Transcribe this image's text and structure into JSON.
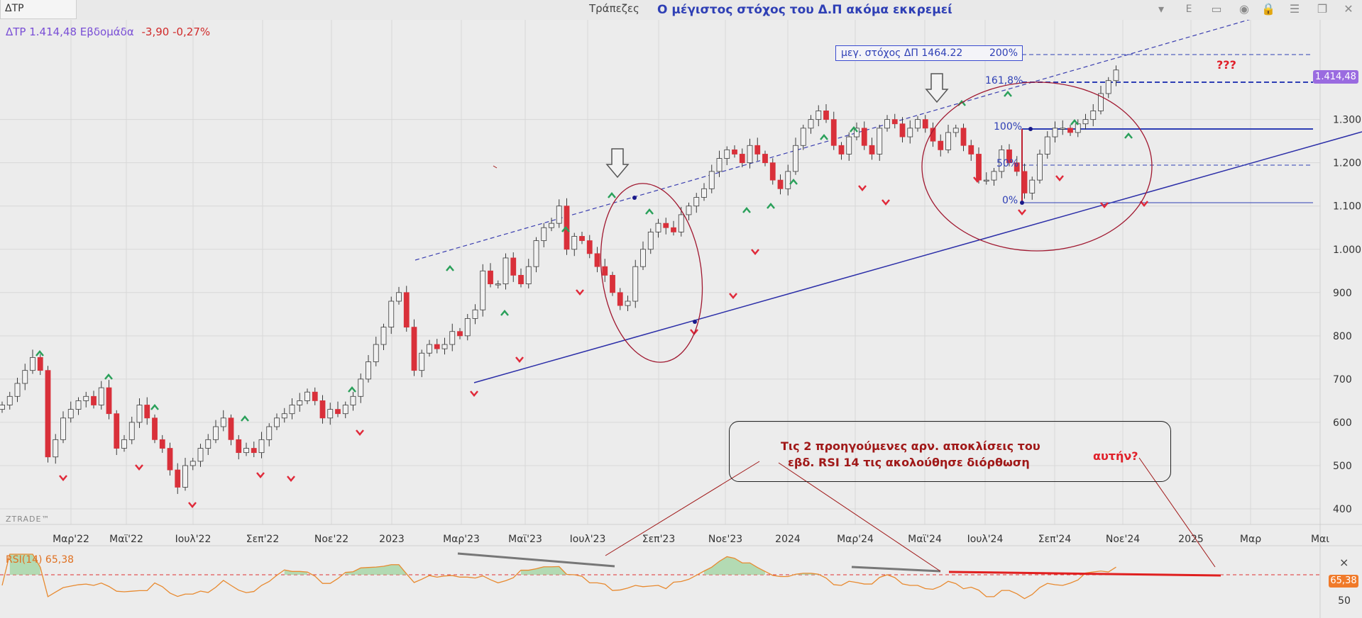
{
  "toolbar": {
    "symbol_tab": "ΔΤΡ",
    "sector": "Τράπεζες",
    "headline": "Ο μέγιστος στόχος του Δ.Π ακόμα εκκρεμεί",
    "letter": "E"
  },
  "info": {
    "symbol_price": "ΔΤΡ 1.414,48 Εβδομάδα",
    "change": "-3,90 -0,27%"
  },
  "brand": "ZTRADE™",
  "price_badge": "1.414,48",
  "rsi": {
    "label": "RSI(14)  65,38",
    "badge": "65,38",
    "close": "×",
    "level_label": "50"
  },
  "annotations": {
    "target_text": "μεγ. στόχος ΔΠ 1464.22",
    "target_pct": "200%",
    "qqq": "???",
    "note_line1": "Τις 2 προηγούμενες αρν. αποκλίσεις του",
    "note_line2": "εβδ. RSI 14 τις ακολούθησε διόρθωση",
    "note_this": "αυτήν?",
    "fib_1618": "161,8%",
    "fib_100": "100%",
    "fib_50": "50%",
    "fib_0": "0%"
  },
  "colors": {
    "up": "#f2f2f2",
    "down": "#d9303a",
    "channel": "#2b2ea8",
    "fib": "#2e3fb5",
    "rsi": "#e88a30",
    "ellipse": "#a01830"
  },
  "chart_data": {
    "type": "candlestick",
    "title": "Ο μέγιστος στόχος του Δ.Π ακόμα εκκρεμεί",
    "period": "weekly",
    "x_ticks": [
      "Μαρ'22",
      "Μαϊ'22",
      "Ιουλ'22",
      "Σεπ'22",
      "Νοε'22",
      "2023",
      "Μαρ'23",
      "Μαϊ'23",
      "Ιουλ'23",
      "Σεπ'23",
      "Νοε'23",
      "2024",
      "Μαρ'24",
      "Μαϊ'24",
      "Ιουλ'24",
      "Σεπ'24",
      "Νοε'24",
      "2025",
      "Μαρ",
      "Μαι"
    ],
    "y_ticks": [
      "400",
      "500",
      "600",
      "700",
      "800",
      "900",
      "1.000",
      "1.100",
      "1.200",
      "1.300"
    ],
    "ylim": [
      370,
      1510
    ],
    "close": [
      640,
      660,
      690,
      720,
      750,
      720,
      520,
      560,
      610,
      630,
      650,
      660,
      640,
      680,
      620,
      540,
      560,
      600,
      640,
      610,
      560,
      540,
      490,
      450,
      500,
      510,
      540,
      560,
      590,
      610,
      560,
      530,
      540,
      530,
      560,
      590,
      610,
      620,
      640,
      650,
      670,
      650,
      610,
      630,
      620,
      640,
      660,
      700,
      740,
      780,
      820,
      880,
      900,
      820,
      720,
      760,
      780,
      770,
      780,
      810,
      800,
      840,
      860,
      950,
      920,
      920,
      980,
      940,
      920,
      960,
      1020,
      1050,
      1060,
      1100,
      1000,
      1030,
      1020,
      990,
      960,
      940,
      900,
      870,
      880,
      960,
      1000,
      1040,
      1060,
      1050,
      1040,
      1080,
      1100,
      1120,
      1140,
      1180,
      1210,
      1230,
      1220,
      1200,
      1240,
      1220,
      1200,
      1160,
      1140,
      1180,
      1240,
      1280,
      1300,
      1320,
      1300,
      1240,
      1220,
      1260,
      1280,
      1240,
      1220,
      1280,
      1300,
      1290,
      1260,
      1280,
      1300,
      1280,
      1250,
      1230,
      1270,
      1280,
      1240,
      1220,
      1160,
      1160,
      1180,
      1230,
      1200,
      1180,
      1130,
      1160,
      1220,
      1260,
      1280,
      1280,
      1270,
      1290,
      1300,
      1320,
      1360,
      1390,
      1414.48
    ],
    "series": [
      {
        "name": "ΔΤΡ",
        "last": 1414.48
      },
      {
        "name": "RSI(14)",
        "last": 65.38,
        "overbought": 70
      }
    ],
    "fibonacci": {
      "0%": 1120,
      "50%": 1205,
      "100%": 1290,
      "161,8%": 1400,
      "200%": 1464.22
    }
  }
}
